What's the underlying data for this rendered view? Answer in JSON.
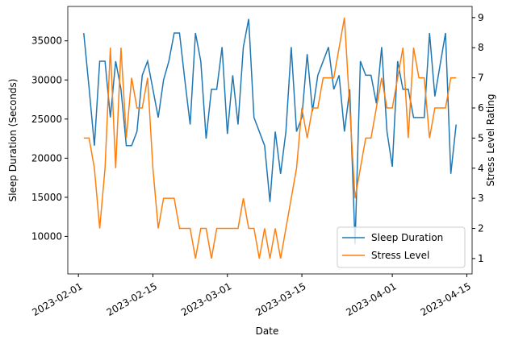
{
  "chart_data": {
    "type": "line",
    "xlabel": "Date",
    "ylabel": "Sleep Duration (Seconds)",
    "y2label": "Stress Level Rating",
    "x": [
      "2023-02-02",
      "2023-02-03",
      "2023-02-04",
      "2023-02-05",
      "2023-02-06",
      "2023-02-07",
      "2023-02-08",
      "2023-02-09",
      "2023-02-10",
      "2023-02-11",
      "2023-02-12",
      "2023-02-13",
      "2023-02-14",
      "2023-02-15",
      "2023-02-16",
      "2023-02-17",
      "2023-02-18",
      "2023-02-19",
      "2023-02-20",
      "2023-02-21",
      "2023-02-22",
      "2023-02-23",
      "2023-02-24",
      "2023-02-25",
      "2023-02-26",
      "2023-02-27",
      "2023-02-28",
      "2023-03-01",
      "2023-03-02",
      "2023-03-03",
      "2023-03-04",
      "2023-03-05",
      "2023-03-06",
      "2023-03-07",
      "2023-03-08",
      "2023-03-09",
      "2023-03-10",
      "2023-03-11",
      "2023-03-12",
      "2023-03-13",
      "2023-03-14",
      "2023-03-15",
      "2023-03-16",
      "2023-03-17",
      "2023-03-18",
      "2023-03-19",
      "2023-03-20",
      "2023-03-21",
      "2023-03-22",
      "2023-03-23",
      "2023-03-24",
      "2023-03-25",
      "2023-03-26",
      "2023-03-27",
      "2023-03-28",
      "2023-03-29",
      "2023-03-30",
      "2023-03-31",
      "2023-04-01",
      "2023-04-02",
      "2023-04-03",
      "2023-04-04",
      "2023-04-05",
      "2023-04-06",
      "2023-04-07",
      "2023-04-08",
      "2023-04-09",
      "2023-04-10",
      "2023-04-11",
      "2023-04-12",
      "2023-04-13"
    ],
    "series": [
      {
        "name": "Sleep Duration",
        "color": "#1f77b4",
        "axis": "y",
        "values": [
          36000,
          29000,
          21600,
          32400,
          32400,
          25200,
          32400,
          28800,
          21600,
          21600,
          23400,
          30600,
          32400,
          28800,
          25200,
          30000,
          32400,
          36000,
          36000,
          30000,
          24300,
          36000,
          32400,
          22500,
          28800,
          28800,
          34200,
          23100,
          30600,
          24300,
          34200,
          37800,
          25200,
          23400,
          21600,
          14400,
          23400,
          18000,
          23400,
          34200,
          23400,
          25200,
          33300,
          26000,
          30600,
          32400,
          34200,
          28800,
          30600,
          23400,
          28800,
          9000,
          32400,
          30600,
          30600,
          27000,
          34200,
          23400,
          18900,
          32400,
          28800,
          28800,
          25200,
          25200,
          25200,
          36000,
          27900,
          32000,
          36000,
          18000,
          24300
        ]
      },
      {
        "name": "Stress Level",
        "color": "#ff7f0e",
        "axis": "y2",
        "values": [
          5,
          5,
          4,
          2,
          4,
          8,
          4,
          8,
          5,
          7,
          6,
          6,
          7,
          4,
          2,
          3,
          3,
          3,
          2,
          2,
          2,
          1,
          2,
          2,
          1,
          2,
          2,
          2,
          2,
          2,
          3,
          2,
          2,
          1,
          2,
          1,
          2,
          1,
          2,
          3,
          4,
          6,
          5,
          6,
          6,
          7,
          7,
          7,
          8,
          9,
          6,
          3,
          4,
          5,
          5,
          6,
          7,
          6,
          6,
          7,
          8,
          5,
          8,
          7,
          7,
          5,
          6,
          6,
          6,
          7,
          7
        ]
      }
    ],
    "xlim": [
      "2023-01-30",
      "2023-04-16"
    ],
    "xticks": [
      "2023-02-01",
      "2023-02-15",
      "2023-03-01",
      "2023-03-15",
      "2023-04-01",
      "2023-04-15"
    ],
    "ylim": [
      5200,
      39400
    ],
    "yticks": [
      10000,
      15000,
      20000,
      25000,
      30000,
      35000
    ],
    "y2lim": [
      0.49,
      9.37
    ],
    "y2ticks": [
      1,
      2,
      3,
      4,
      5,
      6,
      7,
      8,
      9
    ],
    "legend": "lower right"
  }
}
